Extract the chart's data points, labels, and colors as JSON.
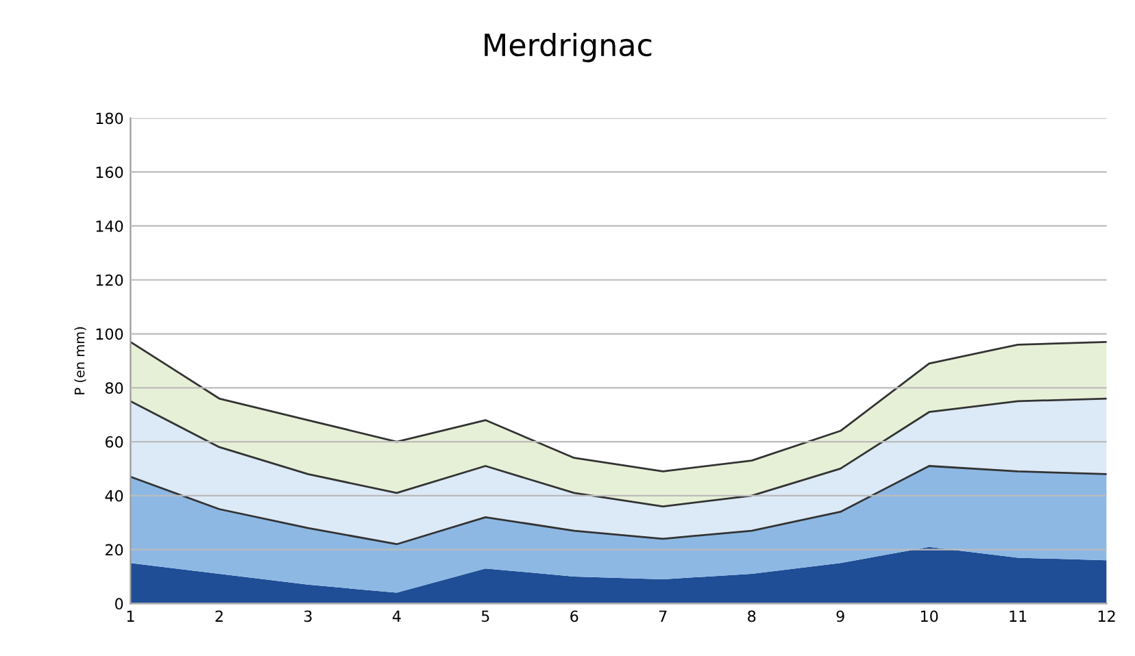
{
  "chart_data": {
    "type": "area",
    "title": "Merdrignac",
    "ylabel": "P (en mm)",
    "categories": [
      "1",
      "2",
      "3",
      "4",
      "5",
      "6",
      "7",
      "8",
      "9",
      "10",
      "11",
      "12"
    ],
    "stacked": true,
    "series": [
      {
        "color": "#1f4e96",
        "values": [
          15,
          11,
          7,
          4,
          13,
          10,
          9,
          11,
          15,
          21,
          17,
          16
        ]
      },
      {
        "color": "#8db8e4",
        "values": [
          32,
          24,
          21,
          18,
          19,
          17,
          15,
          16,
          19,
          30,
          32,
          32
        ]
      },
      {
        "color": "#dce9f7",
        "values": [
          28,
          23,
          20,
          19,
          19,
          14,
          12,
          13,
          16,
          20,
          26,
          28
        ]
      },
      {
        "color": "#e6f0d6",
        "values": [
          22,
          18,
          20,
          19,
          17,
          13,
          13,
          13,
          14,
          18,
          21,
          21
        ]
      }
    ],
    "ylim": [
      0,
      180
    ],
    "yticks": [
      0,
      20,
      40,
      60,
      80,
      100,
      120,
      140,
      160,
      180
    ],
    "grid": "y"
  }
}
